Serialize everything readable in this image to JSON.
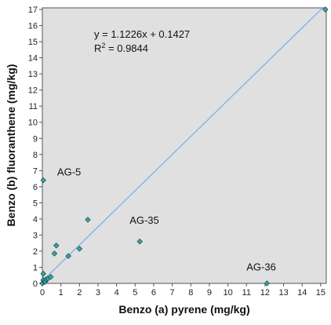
{
  "chart_data": {
    "type": "scatter",
    "title": "",
    "xlabel": "Benzo (a) pyrene (mg/kg)",
    "ylabel": "Benzo (b) fluoranthene (mg/kg)",
    "xlim": [
      0,
      15.3
    ],
    "ylim": [
      0,
      17.1
    ],
    "x_ticks": [
      "0",
      "1",
      "2",
      "3",
      "4",
      "5",
      "6",
      "7",
      "8",
      "9",
      "10",
      "11",
      "12",
      "13",
      "14",
      "15"
    ],
    "y_ticks": [
      "0",
      "1",
      "2",
      "3",
      "4",
      "5",
      "6",
      "7",
      "8",
      "9",
      "10",
      "11",
      "12",
      "13",
      "14",
      "15",
      "16",
      "17"
    ],
    "grid": false,
    "background": "#e0e0e0",
    "point_color": "#3aa8a8",
    "point_edge_color": "#1f4f4f",
    "trendline_color": "#7aaedf",
    "points": [
      {
        "x": 0.0,
        "y": 0.0
      },
      {
        "x": 0.05,
        "y": 0.2
      },
      {
        "x": 0.05,
        "y": 0.6
      },
      {
        "x": 0.1,
        "y": 0.1
      },
      {
        "x": 0.15,
        "y": 0.1
      },
      {
        "x": 0.2,
        "y": 0.25
      },
      {
        "x": 0.3,
        "y": 0.3
      },
      {
        "x": 0.45,
        "y": 0.4
      },
      {
        "x": 0.05,
        "y": 6.4
      },
      {
        "x": 0.65,
        "y": 1.85
      },
      {
        "x": 0.75,
        "y": 2.35
      },
      {
        "x": 1.4,
        "y": 1.7
      },
      {
        "x": 2.0,
        "y": 2.15
      },
      {
        "x": 2.45,
        "y": 3.95
      },
      {
        "x": 5.25,
        "y": 2.6
      },
      {
        "x": 12.1,
        "y": 0.0
      },
      {
        "x": 15.25,
        "y": 17.0
      }
    ],
    "trendline": {
      "slope": 1.1226,
      "intercept": 0.1427,
      "equation": "y = 1.1226x + 0.1427",
      "r2_prefix": "R",
      "r2_sup": "2",
      "r2_value": " = 0.9844"
    },
    "annotations": [
      {
        "text": "AG-5",
        "x": 0.8,
        "y": 6.7
      },
      {
        "text": "AG-35",
        "x": 4.7,
        "y": 3.7
      },
      {
        "text": "AG-36",
        "x": 11.0,
        "y": 0.8
      }
    ]
  }
}
